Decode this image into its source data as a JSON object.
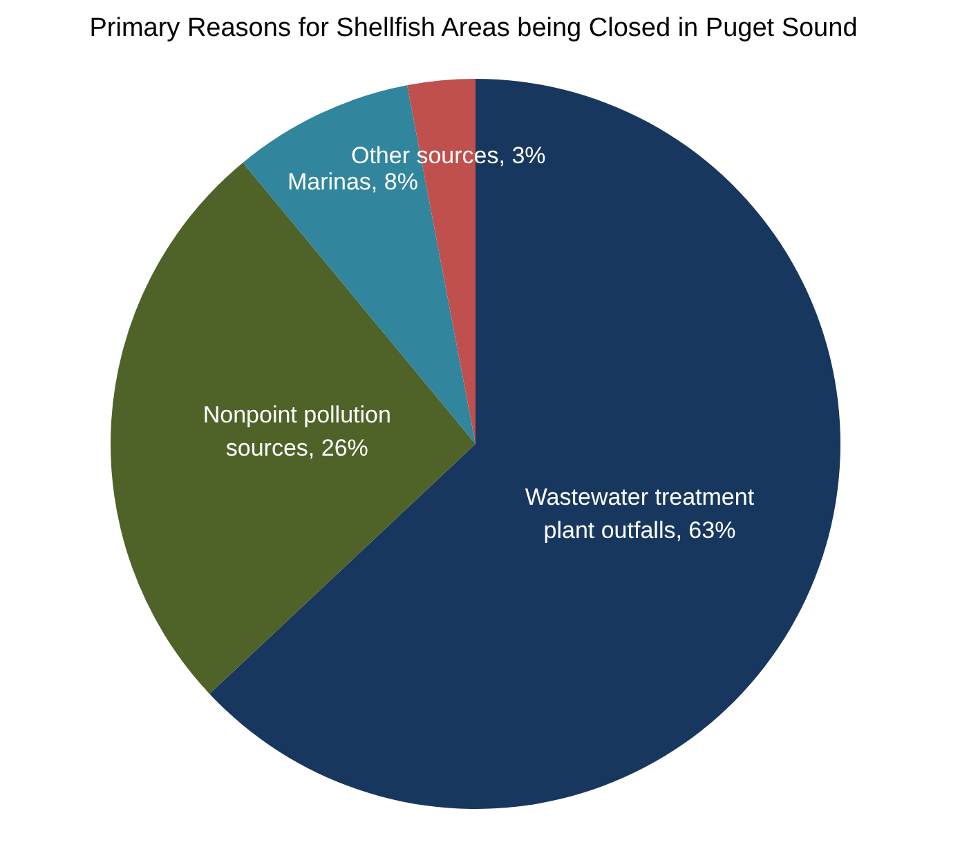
{
  "chart_data": {
    "type": "pie",
    "title": "Primary Reasons for Shellfish Areas being Closed in Puget Sound",
    "categories": [
      "Wastewater treatment plant outfalls",
      "Nonpoint pollution sources",
      "Marinas",
      "Other sources"
    ],
    "values": [
      63,
      26,
      8,
      3
    ],
    "colors": [
      "#17375e",
      "#4f6228",
      "#31859c",
      "#c0504d"
    ],
    "value_labels": [
      "63%",
      "26%",
      "8%",
      "3%"
    ],
    "legend": false
  }
}
